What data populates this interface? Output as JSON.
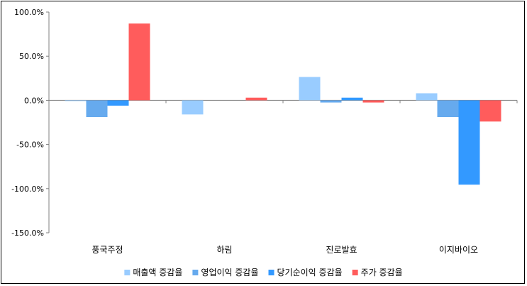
{
  "chart_data": {
    "type": "bar",
    "categories": [
      "풍국주정",
      "하림",
      "진로발효",
      "이지바이오"
    ],
    "series": [
      {
        "name": "매출액 증감율",
        "color": "#99ccff",
        "values": [
          -0.5,
          -16.0,
          26.5,
          8.0
        ]
      },
      {
        "name": "영업이익 증감율",
        "color": "#66aaee",
        "values": [
          -19.0,
          0.0,
          -2.5,
          -19.0
        ]
      },
      {
        "name": "당기순이익 증감율",
        "color": "#3399ff",
        "values": [
          -6.0,
          0.0,
          3.0,
          -95.5
        ]
      },
      {
        "name": "주가 증감율",
        "color": "#ff5c5c",
        "values": [
          87.0,
          3.0,
          -2.5,
          -24.0
        ]
      }
    ],
    "yticks": [
      "100.0%",
      "50.0%",
      "0.0%",
      "-50.0%",
      "-100.0%",
      "-150.0%"
    ],
    "ylim": [
      -150,
      100
    ],
    "legend_position": "bottom",
    "grid": false
  }
}
